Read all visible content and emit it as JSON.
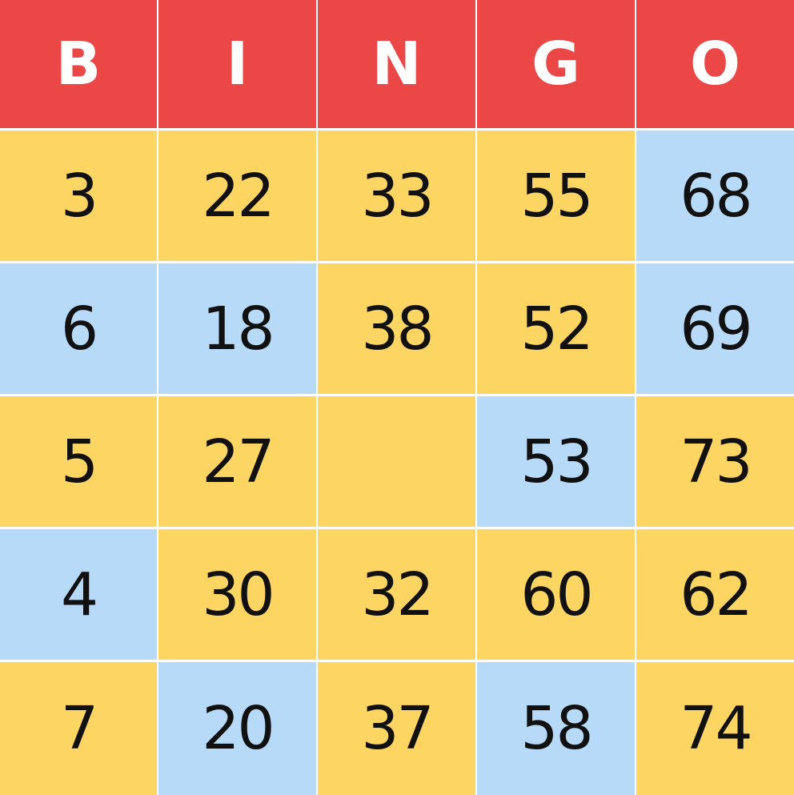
{
  "colors": {
    "header": "#ec4747",
    "header_text": "#ffffff",
    "yellow_cell": "#fdd562",
    "blue_cell": "#b6daf8",
    "number_text": "#111111"
  },
  "headers": [
    "B",
    "I",
    "N",
    "G",
    "O"
  ],
  "rows": [
    [
      {
        "value": "3",
        "color": "yellow"
      },
      {
        "value": "22",
        "color": "yellow"
      },
      {
        "value": "33",
        "color": "yellow"
      },
      {
        "value": "55",
        "color": "yellow"
      },
      {
        "value": "68",
        "color": "blue"
      }
    ],
    [
      {
        "value": "6",
        "color": "blue"
      },
      {
        "value": "18",
        "color": "blue"
      },
      {
        "value": "38",
        "color": "yellow"
      },
      {
        "value": "52",
        "color": "yellow"
      },
      {
        "value": "69",
        "color": "blue"
      }
    ],
    [
      {
        "value": "5",
        "color": "yellow"
      },
      {
        "value": "27",
        "color": "yellow"
      },
      {
        "value": "",
        "color": "yellow"
      },
      {
        "value": "53",
        "color": "blue"
      },
      {
        "value": "73",
        "color": "yellow"
      }
    ],
    [
      {
        "value": "4",
        "color": "blue"
      },
      {
        "value": "30",
        "color": "yellow"
      },
      {
        "value": "32",
        "color": "yellow"
      },
      {
        "value": "60",
        "color": "yellow"
      },
      {
        "value": "62",
        "color": "yellow"
      }
    ],
    [
      {
        "value": "7",
        "color": "yellow"
      },
      {
        "value": "20",
        "color": "blue"
      },
      {
        "value": "37",
        "color": "yellow"
      },
      {
        "value": "58",
        "color": "blue"
      },
      {
        "value": "74",
        "color": "yellow"
      }
    ]
  ]
}
